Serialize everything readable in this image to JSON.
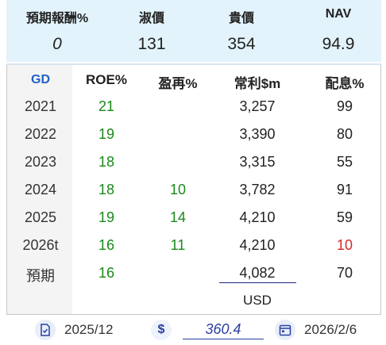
{
  "header": {
    "labels": [
      "預期報酬%",
      "淑價",
      "貴價",
      "NAV"
    ],
    "values": [
      "0",
      "131",
      "354",
      "94.9"
    ]
  },
  "table": {
    "corner": "GD",
    "columns": [
      "ROE%",
      "盈再%",
      "常利$m",
      "配息%"
    ],
    "rows": [
      {
        "year": "2021",
        "roe": "21",
        "reinvest": "",
        "profit": "3,257",
        "dividend": "99"
      },
      {
        "year": "2022",
        "roe": "19",
        "reinvest": "",
        "profit": "3,390",
        "dividend": "80"
      },
      {
        "year": "2023",
        "roe": "18",
        "reinvest": "",
        "profit": "3,315",
        "dividend": "55"
      },
      {
        "year": "2024",
        "roe": "18",
        "reinvest": "10",
        "profit": "3,782",
        "dividend": "91"
      },
      {
        "year": "2025",
        "roe": "19",
        "reinvest": "14",
        "profit": "4,210",
        "dividend": "59"
      },
      {
        "year": "2026t",
        "roe": "16",
        "reinvest": "11",
        "profit": "4,210",
        "dividend": "10"
      },
      {
        "year": "預期",
        "roe": "16",
        "reinvest": "",
        "profit": "4,082",
        "dividend": "70"
      }
    ],
    "currency": "USD"
  },
  "footer": {
    "report_date": "2025/12",
    "currency_symbol": "$",
    "price": "360.4",
    "price_date": "2026/2/6"
  },
  "colors": {
    "green": "#1a8a1a",
    "red": "#d42a2a",
    "accent": "#1e62c8",
    "header_bg": "#e3f3fc"
  }
}
